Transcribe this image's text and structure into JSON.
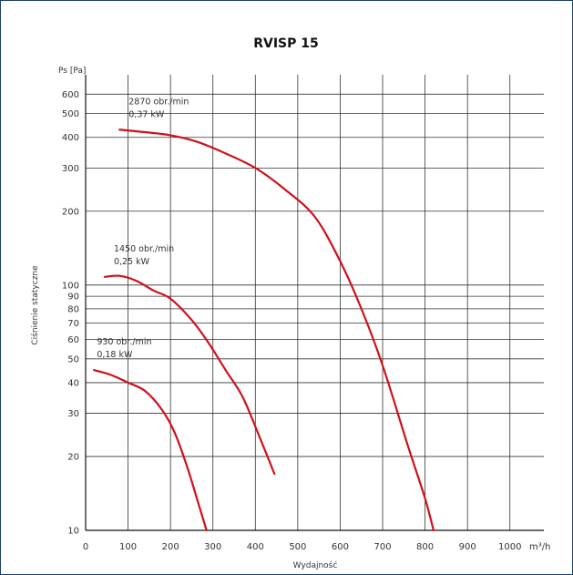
{
  "chart_data": {
    "type": "line",
    "title": "RVISP 15",
    "xlabel": "Wydajność",
    "ylabel": "Ciśnienie statyczne",
    "y_unit_label": "Ps [Pa]",
    "x_unit_label": "m³/h",
    "x_scale": "linear",
    "y_scale": "log",
    "xlim": [
      0,
      1080
    ],
    "ylim": [
      10,
      720
    ],
    "x_ticks": [
      0,
      100,
      200,
      300,
      400,
      500,
      600,
      700,
      800,
      900,
      1000
    ],
    "x_tick_labels": [
      "0",
      "100",
      "200",
      "300",
      "400",
      "500",
      "600",
      "700",
      "800",
      "900",
      "1000"
    ],
    "y_ticks": [
      10,
      20,
      30,
      40,
      50,
      60,
      70,
      80,
      90,
      100,
      200,
      300,
      400,
      500,
      600
    ],
    "y_tick_labels": [
      "10",
      "20",
      "30",
      "40",
      "50",
      "60",
      "70",
      "80",
      "90",
      "100",
      "200",
      "300",
      "400",
      "500",
      "600"
    ],
    "grid": true,
    "line_color": "#d0101b",
    "series": [
      {
        "annotation": [
          "2870 obr./min",
          "0,37 kW"
        ],
        "points": [
          [
            80,
            430
          ],
          [
            140,
            420
          ],
          [
            200,
            408
          ],
          [
            260,
            385
          ],
          [
            320,
            350
          ],
          [
            400,
            300
          ],
          [
            470,
            245
          ],
          [
            540,
            190
          ],
          [
            600,
            125
          ],
          [
            650,
            80
          ],
          [
            700,
            47
          ],
          [
            760,
            22
          ],
          [
            800,
            13.5
          ],
          [
            820,
            10
          ]
        ]
      },
      {
        "annotation": [
          "1450 obr./min",
          "0,25 kW"
        ],
        "points": [
          [
            45,
            108
          ],
          [
            80,
            109
          ],
          [
            120,
            104
          ],
          [
            160,
            95
          ],
          [
            200,
            88
          ],
          [
            250,
            72
          ],
          [
            290,
            58
          ],
          [
            330,
            45
          ],
          [
            370,
            35
          ],
          [
            410,
            24
          ],
          [
            445,
            17
          ]
        ]
      },
      {
        "annotation": [
          "930 obr./min",
          "0,18 kW"
        ],
        "points": [
          [
            20,
            45
          ],
          [
            60,
            43
          ],
          [
            100,
            40
          ],
          [
            140,
            37
          ],
          [
            180,
            31
          ],
          [
            210,
            25
          ],
          [
            240,
            18
          ],
          [
            265,
            13
          ],
          [
            285,
            10
          ]
        ]
      }
    ]
  }
}
